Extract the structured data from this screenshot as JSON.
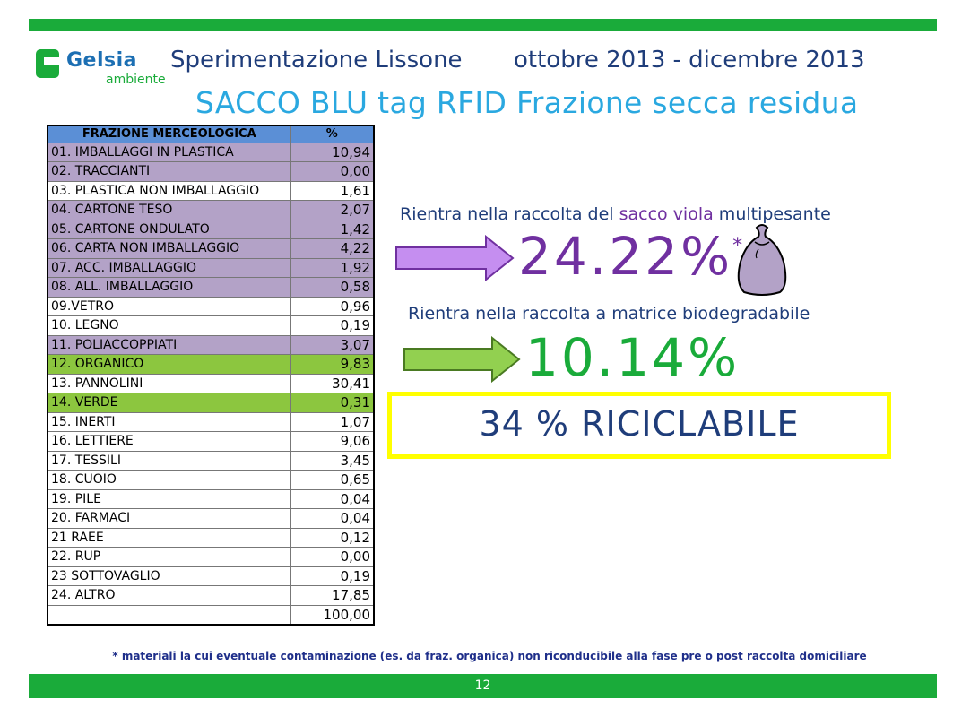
{
  "header": {
    "logo_name": "Gelsia",
    "logo_sub": "ambiente",
    "title_left": "Sperimentazione Lissone",
    "title_right": "ottobre 2013 - dicembre 2013",
    "subtitle": "SACCO BLU tag RFID Frazione secca residua"
  },
  "table": {
    "col_name": "FRAZIONE MERCEOLOGICA",
    "col_pct": "%",
    "rows": [
      {
        "name": "01. IMBALLAGGI IN PLASTICA",
        "value": "10,94",
        "group": "viola"
      },
      {
        "name": "02. TRACCIANTI",
        "value": "0,00",
        "group": "viola"
      },
      {
        "name": "03. PLASTICA NON IMBALLAGGIO",
        "value": "1,61",
        "group": ""
      },
      {
        "name": "04. CARTONE TESO",
        "value": "2,07",
        "group": "viola"
      },
      {
        "name": "05. CARTONE ONDULATO",
        "value": "1,42",
        "group": "viola"
      },
      {
        "name": "06. CARTA NON IMBALLAGGIO",
        "value": "4,22",
        "group": "viola"
      },
      {
        "name": "07. ACC. IMBALLAGGIO",
        "value": "1,92",
        "group": "viola"
      },
      {
        "name": "08. ALL. IMBALLAGGIO",
        "value": "0,58",
        "group": "viola"
      },
      {
        "name": "09.VETRO",
        "value": "0,96",
        "group": ""
      },
      {
        "name": "10. LEGNO",
        "value": "0,19",
        "group": ""
      },
      {
        "name": "11. POLIACCOPPIATI",
        "value": "3,07",
        "group": "viola"
      },
      {
        "name": "12. ORGANICO",
        "value": "9,83",
        "group": "verde"
      },
      {
        "name": "13. PANNOLINI",
        "value": "30,41",
        "group": ""
      },
      {
        "name": "14. VERDE",
        "value": "0,31",
        "group": "verde"
      },
      {
        "name": "15. INERTI",
        "value": "1,07",
        "group": ""
      },
      {
        "name": "16. LETTIERE",
        "value": "9,06",
        "group": ""
      },
      {
        "name": "17. TESSILI",
        "value": "3,45",
        "group": ""
      },
      {
        "name": "18. CUOIO",
        "value": "0,65",
        "group": ""
      },
      {
        "name": "19. PILE",
        "value": "0,04",
        "group": ""
      },
      {
        "name": "20. FARMACI",
        "value": "0,04",
        "group": ""
      },
      {
        "name": "21 RAEE",
        "value": "0,12",
        "group": ""
      },
      {
        "name": "22. RUP",
        "value": "0,00",
        "group": ""
      },
      {
        "name": "23 SOTTOVAGLIO",
        "value": "0,19",
        "group": ""
      },
      {
        "name": "24. ALTRO",
        "value": "17,85",
        "group": ""
      },
      {
        "name": "",
        "value": "100,00",
        "group": ""
      }
    ]
  },
  "callouts": {
    "line1_pre": "Rientra nella raccolta del ",
    "line1_highlight": "sacco viola",
    "line1_post": " multipesante",
    "big1": "24.22%",
    "big1_mark": "*",
    "line2": "Rientra nella raccolta a matrice biodegradabile",
    "big2": "10.14%",
    "box": "34 % RICICLABILE"
  },
  "footnote": "* materiali  la cui  eventuale contaminazione  (es. da fraz. organica) non riconducibile  alla fase pre o post raccolta domiciliare",
  "page_number": "12",
  "colors": {
    "green": "#1aab3a",
    "violet": "#7030a0",
    "violet_fill": "#b3a2c7",
    "green_fill": "#8cc63f",
    "header_fill": "#5b8fd6",
    "highlight_box": "#ffff00"
  },
  "icons": [
    "purple-bag-icon",
    "purple-arrow-icon",
    "green-arrow-icon"
  ]
}
